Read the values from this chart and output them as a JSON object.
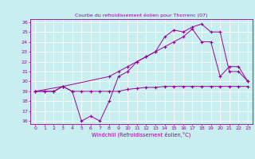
{
  "title": "Courbe du refroidissement éolien pour Thorrenc (07)",
  "xlabel": "Windchill (Refroidissement éolien,°C)",
  "bg_color": "#c8eef0",
  "line_color": "#990099",
  "grid_color": "#ffffff",
  "xlim": [
    -0.5,
    23.5
  ],
  "ylim": [
    15.7,
    26.3
  ],
  "yticks": [
    16,
    17,
    18,
    19,
    20,
    21,
    22,
    23,
    24,
    25,
    26
  ],
  "xticks": [
    0,
    1,
    2,
    3,
    4,
    5,
    6,
    7,
    8,
    9,
    10,
    11,
    12,
    13,
    14,
    15,
    16,
    17,
    18,
    19,
    20,
    21,
    22,
    23
  ],
  "line1_x": [
    0,
    1,
    2,
    3,
    4,
    5,
    6,
    7,
    8,
    9,
    10,
    11,
    12,
    13,
    14,
    15,
    16,
    17,
    18,
    19,
    20,
    21,
    22,
    23
  ],
  "line1_y": [
    19,
    19,
    19,
    19.5,
    19,
    16,
    16.5,
    16,
    18,
    20.5,
    21,
    22,
    22.5,
    23,
    24.5,
    25.2,
    25,
    25.5,
    25.8,
    25,
    25,
    21,
    21,
    20
  ],
  "line2_x": [
    0,
    1,
    2,
    3,
    4,
    5,
    6,
    7,
    8,
    9,
    10,
    11,
    12,
    13,
    14,
    15,
    16,
    17,
    18,
    19,
    20,
    21,
    22,
    23
  ],
  "line2_y": [
    19,
    19,
    19,
    19.5,
    19,
    19,
    19,
    19,
    19,
    19,
    19.2,
    19.3,
    19.4,
    19.4,
    19.5,
    19.5,
    19.5,
    19.5,
    19.5,
    19.5,
    19.5,
    19.5,
    19.5,
    19.5
  ],
  "line3_x": [
    0,
    3,
    8,
    9,
    10,
    11,
    12,
    13,
    14,
    15,
    16,
    17,
    18,
    19,
    20,
    21,
    22,
    23
  ],
  "line3_y": [
    19,
    19.5,
    20.5,
    21,
    21.5,
    22,
    22.5,
    23,
    23.5,
    24,
    24.5,
    25.3,
    24,
    24,
    20.5,
    21.5,
    21.5,
    20
  ]
}
